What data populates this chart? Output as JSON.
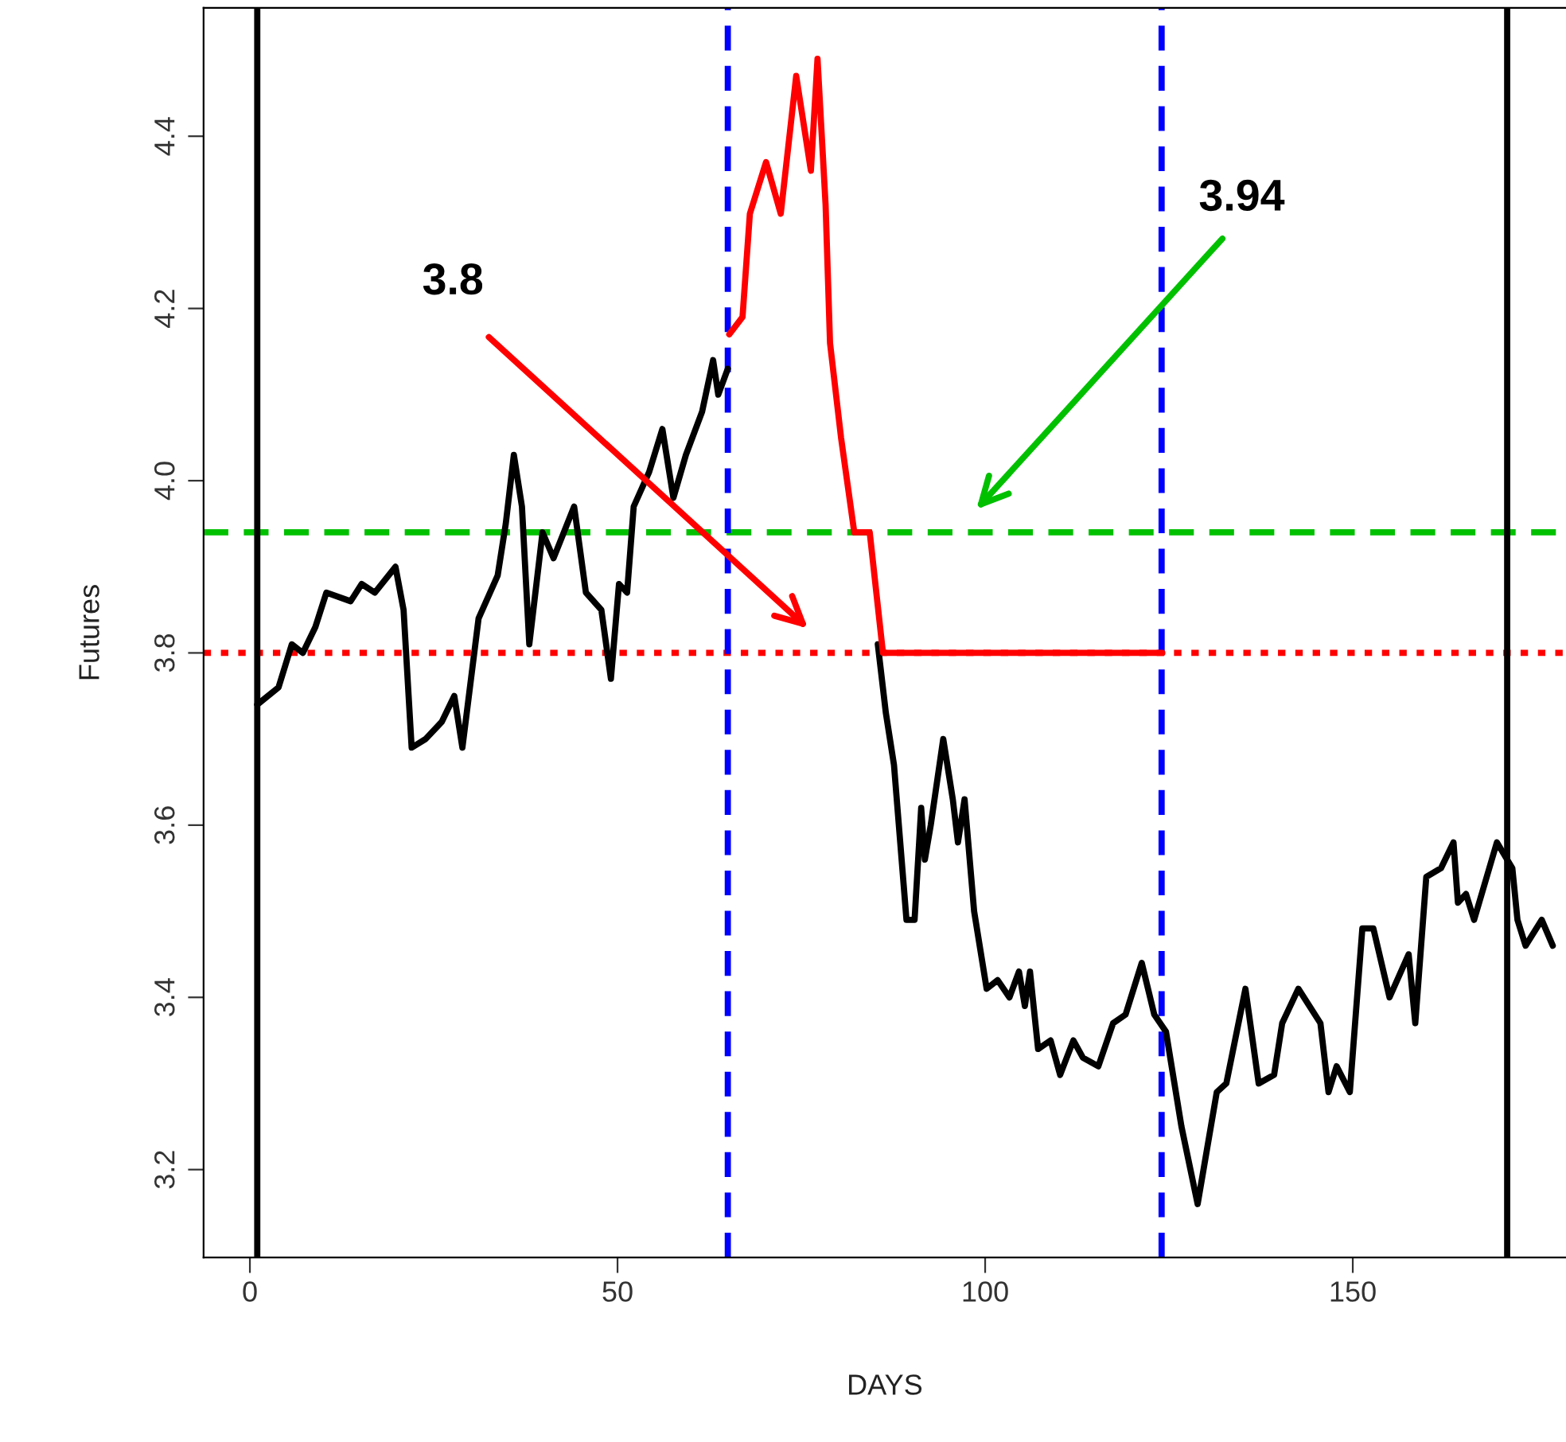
{
  "chart_data": {
    "type": "line",
    "xlabel": "DAYS",
    "ylabel": "Futures",
    "xlim": [
      -6.3,
      179
    ],
    "xticks": [
      0,
      50,
      100,
      150
    ],
    "ylim": [
      3.098,
      4.549
    ],
    "yticks": [
      3.2,
      3.4,
      3.6,
      3.8,
      {
        "value": 4.0,
        "label": "4.0"
      },
      4.2,
      4.4
    ],
    "grid": false,
    "legend": false,
    "line_style": "solid",
    "marker": "none",
    "series": [
      {
        "color": "#000000",
        "x": [
          1,
          3.9,
          5.7,
          7.2,
          8.9,
          10.4,
          13.7,
          15.2,
          17,
          19.8,
          20.9,
          22,
          23.9,
          26.1,
          27.8,
          28.9,
          31.1,
          33.7,
          34.8,
          35.9,
          37,
          38,
          39.8,
          41.3,
          44.1,
          45.7,
          47.8,
          49.1,
          50.2,
          51.3,
          52.2,
          54.3,
          56.1,
          57.6,
          59.3,
          61.5,
          63,
          63.7,
          65,
          75,
          85.4,
          86.5,
          87.6,
          89.3,
          90.4,
          91.3,
          91.8,
          92.6,
          94.3,
          95.6,
          96.3,
          97.2,
          98.5,
          100.2,
          101.7,
          103.3,
          104.6,
          105.4,
          106.1,
          107.2,
          108.9,
          110.2,
          112,
          113.3,
          115.4,
          117.4,
          119.1,
          121.3,
          123,
          124.6,
          126.7,
          128.9,
          131.5,
          132.8,
          135.4,
          137.2,
          139.3,
          140.4,
          142.6,
          145.6,
          146.7,
          147.8,
          149.6,
          151.3,
          152.8,
          155,
          157.6,
          158.5,
          160,
          162,
          163.7,
          164.3,
          165.4,
          166.5,
          169.6,
          171.7,
          172.4,
          173.5,
          175.7,
          177.2
        ],
        "values": [
          3.74,
          3.76,
          3.81,
          3.8,
          3.83,
          3.87,
          3.86,
          3.88,
          3.87,
          3.9,
          3.85,
          3.69,
          3.7,
          3.72,
          3.75,
          3.69,
          3.84,
          3.89,
          3.95,
          4.03,
          3.97,
          3.81,
          3.94,
          3.91,
          3.97,
          3.87,
          3.85,
          3.77,
          3.88,
          3.87,
          3.97,
          4.01,
          4.06,
          3.98,
          4.03,
          4.08,
          4.14,
          4.1,
          4.13,
          null,
          3.81,
          3.73,
          3.67,
          3.49,
          3.49,
          3.62,
          3.56,
          3.6,
          3.7,
          3.63,
          3.58,
          3.63,
          3.5,
          3.41,
          3.42,
          3.4,
          3.43,
          3.39,
          3.43,
          3.34,
          3.35,
          3.31,
          3.35,
          3.33,
          3.32,
          3.37,
          3.38,
          3.44,
          3.38,
          3.36,
          3.25,
          3.16,
          3.29,
          3.3,
          3.41,
          3.3,
          3.31,
          3.37,
          3.41,
          3.37,
          3.29,
          3.32,
          3.29,
          3.48,
          3.48,
          3.4,
          3.45,
          3.37,
          3.54,
          3.55,
          3.58,
          3.51,
          3.52,
          3.49,
          3.58,
          3.55,
          3.49,
          3.46,
          3.49,
          3.46
        ]
      },
      {
        "color": "#ff0000",
        "x": [
          65.2,
          67,
          68,
          70.2,
          72.2,
          74.3,
          76.3,
          77.2,
          78.3,
          78.9,
          80.4,
          82.2,
          84.3,
          86.1,
          124.1
        ],
        "values": [
          4.17,
          4.19,
          4.31,
          4.37,
          4.31,
          4.47,
          4.36,
          4.49,
          4.32,
          4.16,
          4.05,
          3.94,
          3.94,
          3.8,
          3.8
        ]
      }
    ],
    "ref_lines": [
      {
        "axis": "y",
        "value": 3.8,
        "color": "#ff0000",
        "line_style": "dotted"
      },
      {
        "axis": "y",
        "value": 3.94,
        "color": "#00c000",
        "line_style": "dashed"
      },
      {
        "axis": "x",
        "value": 1,
        "color": "#000000",
        "line_style": "solid"
      },
      {
        "axis": "x",
        "value": 65,
        "color": "#0000ff",
        "line_style": "dashed"
      },
      {
        "axis": "x",
        "value": 124,
        "color": "#0000ff",
        "line_style": "dashed"
      },
      {
        "axis": "x",
        "value": 171,
        "color": "#000000",
        "line_style": "solid"
      }
    ],
    "annotations": [
      "3.8",
      "3.94"
    ]
  }
}
